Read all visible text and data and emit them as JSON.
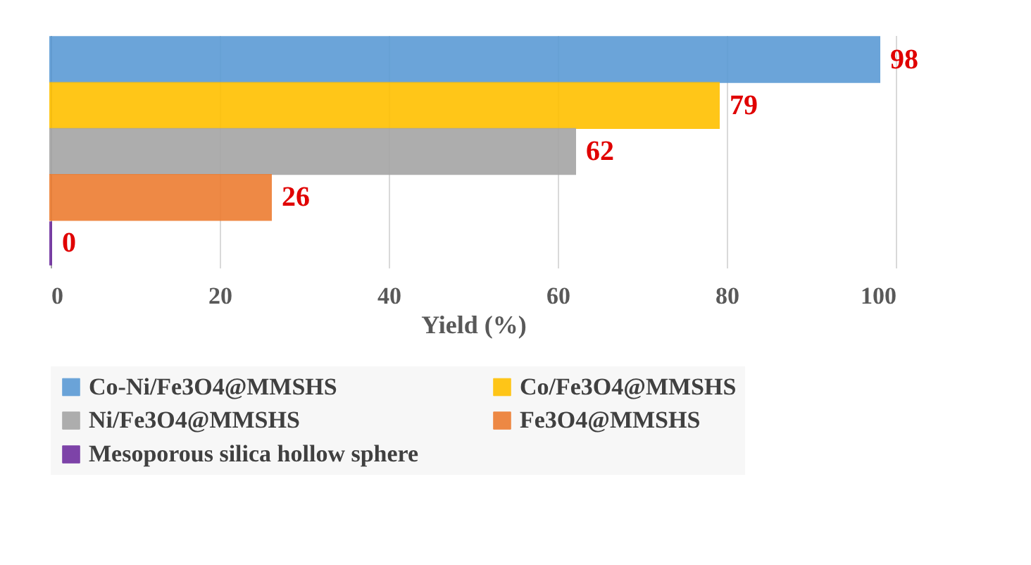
{
  "chart_data": {
    "type": "bar",
    "orientation": "horizontal",
    "xlabel": "Yield (%)",
    "categories": [
      null,
      null,
      null,
      null,
      null
    ],
    "series": [
      {
        "name": "Co-Ni/Fe3O4@MMSHS",
        "color": "#5b9bd5",
        "values": [
          98,
          null,
          null,
          null,
          null
        ]
      },
      {
        "name": "Co/Fe3O4@MMSHS",
        "color": "#ffc000",
        "values": [
          null,
          79,
          null,
          null,
          null
        ]
      },
      {
        "name": "Ni/Fe3O4@MMSHS",
        "color": "#a5a5a5",
        "values": [
          null,
          null,
          62,
          null,
          null
        ]
      },
      {
        "name": "Fe3O4@MMSHS",
        "color": "#ed7d31",
        "values": [
          null,
          null,
          null,
          26,
          null
        ]
      },
      {
        "name": "Mesoporous silica hollow sphere",
        "color": "#7030a0",
        "values": [
          null,
          null,
          null,
          null,
          0
        ]
      }
    ],
    "xlim": [
      0,
      100
    ],
    "xticks": [
      0,
      20,
      40,
      60,
      80,
      100
    ],
    "grid": "x",
    "data_labels": true,
    "legend": "bottom"
  }
}
